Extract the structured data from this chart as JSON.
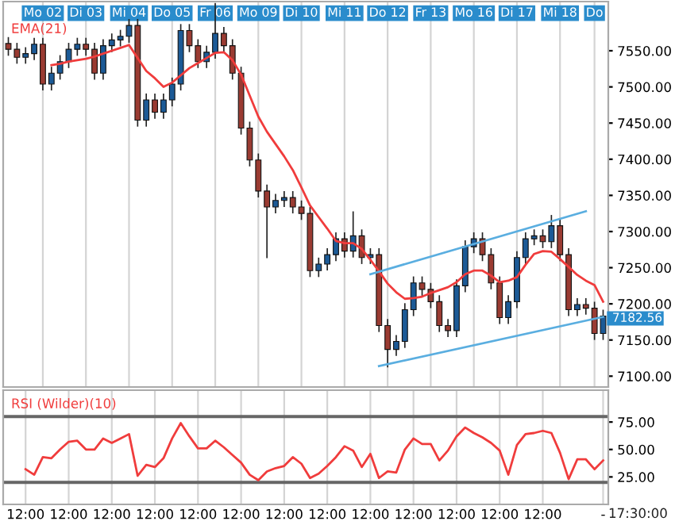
{
  "chart_data": [
    {
      "type": "candlestick",
      "categories": [
        null,
        null,
        null,
        null,
        "Mo 02",
        null,
        null,
        null,
        null,
        "Di 03",
        null,
        null,
        null,
        null,
        "Mi 04",
        null,
        null,
        null,
        null,
        "Do 05",
        null,
        null,
        null,
        null,
        "Fr 06",
        null,
        null,
        null,
        null,
        "Mo 09",
        null,
        null,
        null,
        null,
        "Di 10",
        null,
        null,
        null,
        null,
        "Mi 11",
        null,
        null,
        null,
        null,
        "Do 12",
        null,
        null,
        null,
        null,
        "Fr 13",
        null,
        null,
        null,
        null,
        "Mo 16",
        null,
        null,
        null,
        null,
        "Di 17",
        null,
        null,
        null,
        null,
        "Mi 18",
        null,
        null,
        null,
        "Do",
        null
      ],
      "ohlc": [
        [
          7560,
          7568,
          7544,
          7552
        ],
        [
          7552,
          7560,
          7533,
          7541
        ],
        [
          7541,
          7554,
          7533,
          7546
        ],
        [
          7546,
          7567,
          7538,
          7559
        ],
        [
          7559,
          7567,
          7496,
          7504
        ],
        [
          7504,
          7527,
          7496,
          7519
        ],
        [
          7519,
          7543,
          7511,
          7535
        ],
        [
          7535,
          7560,
          7527,
          7552
        ],
        [
          7552,
          7567,
          7544,
          7559
        ],
        [
          7559,
          7567,
          7544,
          7552
        ],
        [
          7552,
          7560,
          7511,
          7519
        ],
        [
          7519,
          7565,
          7511,
          7557
        ],
        [
          7557,
          7573,
          7549,
          7565
        ],
        [
          7565,
          7578,
          7557,
          7570
        ],
        [
          7570,
          7593,
          7562,
          7585
        ],
        [
          7585,
          7593,
          7446,
          7454
        ],
        [
          7454,
          7490,
          7446,
          7482
        ],
        [
          7482,
          7490,
          7457,
          7465
        ],
        [
          7465,
          7490,
          7457,
          7482
        ],
        [
          7482,
          7512,
          7474,
          7504
        ],
        [
          7504,
          7586,
          7496,
          7578
        ],
        [
          7578,
          7586,
          7549,
          7557
        ],
        [
          7557,
          7565,
          7527,
          7535
        ],
        [
          7535,
          7556,
          7527,
          7548
        ],
        [
          7548,
          7615,
          7540,
          7574
        ],
        [
          7574,
          7582,
          7549,
          7557
        ],
        [
          7557,
          7565,
          7511,
          7519
        ],
        [
          7519,
          7527,
          7435,
          7443
        ],
        [
          7443,
          7451,
          7391,
          7399
        ],
        [
          7399,
          7407,
          7348,
          7356
        ],
        [
          7356,
          7364,
          7264,
          7334
        ],
        [
          7334,
          7351,
          7326,
          7343
        ],
        [
          7343,
          7355,
          7335,
          7347
        ],
        [
          7347,
          7355,
          7326,
          7334
        ],
        [
          7334,
          7342,
          7317,
          7325
        ],
        [
          7325,
          7333,
          7238,
          7246
        ],
        [
          7246,
          7263,
          7238,
          7255
        ],
        [
          7255,
          7276,
          7247,
          7268
        ],
        [
          7268,
          7298,
          7260,
          7290
        ],
        [
          7290,
          7298,
          7265,
          7273
        ],
        [
          7273,
          7327,
          7265,
          7294
        ],
        [
          7294,
          7302,
          7256,
          7264
        ],
        [
          7264,
          7276,
          7256,
          7268
        ],
        [
          7268,
          7276,
          7162,
          7170
        ],
        [
          7170,
          7178,
          7113,
          7137
        ],
        [
          7137,
          7156,
          7129,
          7148
        ],
        [
          7148,
          7200,
          7140,
          7192
        ],
        [
          7192,
          7237,
          7184,
          7229
        ],
        [
          7229,
          7237,
          7212,
          7220
        ],
        [
          7220,
          7228,
          7195,
          7203
        ],
        [
          7203,
          7211,
          7162,
          7170
        ],
        [
          7170,
          7178,
          7155,
          7163
        ],
        [
          7163,
          7233,
          7155,
          7225
        ],
        [
          7225,
          7287,
          7217,
          7279
        ],
        [
          7279,
          7298,
          7271,
          7290
        ],
        [
          7290,
          7298,
          7260,
          7268
        ],
        [
          7268,
          7276,
          7221,
          7229
        ],
        [
          7229,
          7237,
          7173,
          7181
        ],
        [
          7181,
          7211,
          7173,
          7203
        ],
        [
          7203,
          7272,
          7195,
          7264
        ],
        [
          7264,
          7298,
          7256,
          7290
        ],
        [
          7290,
          7302,
          7282,
          7294
        ],
        [
          7294,
          7302,
          7278,
          7286
        ],
        [
          7286,
          7322,
          7278,
          7308
        ],
        [
          7308,
          7316,
          7260,
          7268
        ],
        [
          7268,
          7276,
          7184,
          7192
        ],
        [
          7192,
          7207,
          7184,
          7199
        ],
        [
          7199,
          7207,
          7186,
          7194
        ],
        [
          7194,
          7202,
          7151,
          7159
        ],
        [
          7159,
          7191,
          7151,
          7183
        ]
      ],
      "series": [
        {
          "name": "EMA(21)",
          "type": "line",
          "color": "#f03c3c",
          "values": [
            null,
            null,
            null,
            null,
            null,
            7530,
            7532,
            7535,
            7537,
            7539,
            7542,
            7546,
            7550,
            7554,
            7558,
            7540,
            7522,
            7512,
            7500,
            7506,
            7516,
            7526,
            7533,
            7540,
            7547,
            7548,
            7537,
            7517,
            7488,
            7459,
            7438,
            7421,
            7404,
            7385,
            7361,
            7336,
            7320,
            7304,
            7287,
            7284,
            7284,
            7276,
            7261,
            7245,
            7228,
            7216,
            7207,
            7208,
            7210,
            7215,
            7219,
            7223,
            7230,
            7241,
            7246,
            7246,
            7239,
            7230,
            7232,
            7237,
            7254,
            7269,
            7273,
            7272,
            7262,
            7251,
            7240,
            7232,
            7226,
            7203
          ]
        },
        {
          "type": "line",
          "color": "#5aaee0",
          "values": [
            null,
            null,
            null,
            null,
            null,
            null,
            null,
            null,
            null,
            null,
            null,
            null,
            null,
            null,
            null,
            null,
            null,
            null,
            null,
            null,
            null,
            null,
            null,
            null,
            null,
            null,
            null,
            null,
            null,
            null,
            null,
            null,
            null,
            null,
            null,
            null,
            null,
            null,
            null,
            null,
            null,
            null,
            7241,
            null,
            null,
            null,
            null,
            null,
            null,
            null,
            null,
            null,
            null,
            null,
            null,
            null,
            null,
            null,
            null,
            null,
            null,
            null,
            null,
            null,
            null,
            null,
            null,
            7328,
            null,
            null
          ]
        },
        {
          "type": "line",
          "color": "#5aaee0",
          "values": [
            null,
            null,
            null,
            null,
            null,
            null,
            null,
            null,
            null,
            null,
            null,
            null,
            null,
            null,
            null,
            null,
            null,
            null,
            null,
            null,
            null,
            null,
            null,
            null,
            null,
            null,
            null,
            null,
            null,
            null,
            null,
            null,
            null,
            null,
            null,
            null,
            null,
            null,
            null,
            null,
            null,
            null,
            null,
            7114,
            null,
            null,
            null,
            null,
            null,
            null,
            null,
            null,
            null,
            null,
            null,
            null,
            null,
            null,
            null,
            null,
            null,
            null,
            null,
            null,
            null,
            null,
            null,
            null,
            null,
            7182
          ]
        }
      ],
      "ylim": [
        7085,
        7618
      ],
      "yticks": [
        {
          "value": 7100,
          "label": "7100.00"
        },
        {
          "value": 7150,
          "label": "7150.00"
        },
        {
          "value": 7200,
          "label": "7200.00"
        },
        {
          "value": 7250,
          "label": "7250.00"
        },
        {
          "value": 7300,
          "label": "7300.00"
        },
        {
          "value": 7350,
          "label": "7350.00"
        },
        {
          "value": 7400,
          "label": "7400.00"
        },
        {
          "value": 7450,
          "label": "7450.00"
        },
        {
          "value": 7500,
          "label": "7500.00"
        },
        {
          "value": 7550,
          "label": "7550.00"
        }
      ],
      "annotations": [
        "7182.56"
      ],
      "legend": "top left",
      "grid": "x"
    },
    {
      "type": "line",
      "categories": [
        null,
        null,
        "12:00",
        null,
        null,
        null,
        null,
        "12:00",
        null,
        null,
        null,
        null,
        "12:00",
        null,
        null,
        null,
        null,
        "12:00",
        null,
        null,
        null,
        null,
        "12:00",
        null,
        null,
        null,
        null,
        "12:00",
        null,
        null,
        null,
        null,
        "12:00",
        null,
        null,
        null,
        null,
        "12:00",
        null,
        null,
        null,
        null,
        "12:00",
        null,
        null,
        null,
        null,
        "12:00",
        null,
        null,
        null,
        null,
        "12:00",
        null,
        null,
        null,
        null,
        "12:00",
        null,
        null,
        null,
        null,
        "12:00",
        null,
        null,
        null,
        null,
        null,
        null,
        "-"
      ],
      "series": [
        {
          "name": "RSI (Wilder)(10)",
          "color": "#f03c3c",
          "values": [
            null,
            null,
            32,
            27,
            43,
            42,
            50,
            57,
            58,
            50,
            50,
            60,
            56,
            60,
            64,
            26,
            36,
            34,
            42,
            60,
            74,
            62,
            51,
            51,
            58,
            52,
            45,
            38,
            27,
            22,
            30,
            33,
            35,
            43,
            37,
            24,
            28,
            35,
            43,
            53,
            49,
            34,
            46,
            24,
            30,
            29,
            50,
            60,
            55,
            55,
            40,
            49,
            62,
            70,
            65,
            61,
            56,
            49,
            27,
            54,
            64,
            65,
            67,
            65,
            47,
            23,
            41,
            41,
            32,
            40
          ]
        }
      ],
      "ylim": [
        0,
        104
      ],
      "yticks": [
        {
          "value": 25,
          "label": "25.00"
        },
        {
          "value": 50,
          "label": "50.00"
        },
        {
          "value": 75,
          "label": "75.00"
        }
      ],
      "ref_lines": [
        {
          "axis": "y",
          "value": 80,
          "color": "#666666"
        },
        {
          "axis": "y",
          "value": 20,
          "color": "#666666"
        }
      ],
      "annotations": [
        "17:30:00"
      ],
      "legend": "top left",
      "grid": "x"
    }
  ]
}
